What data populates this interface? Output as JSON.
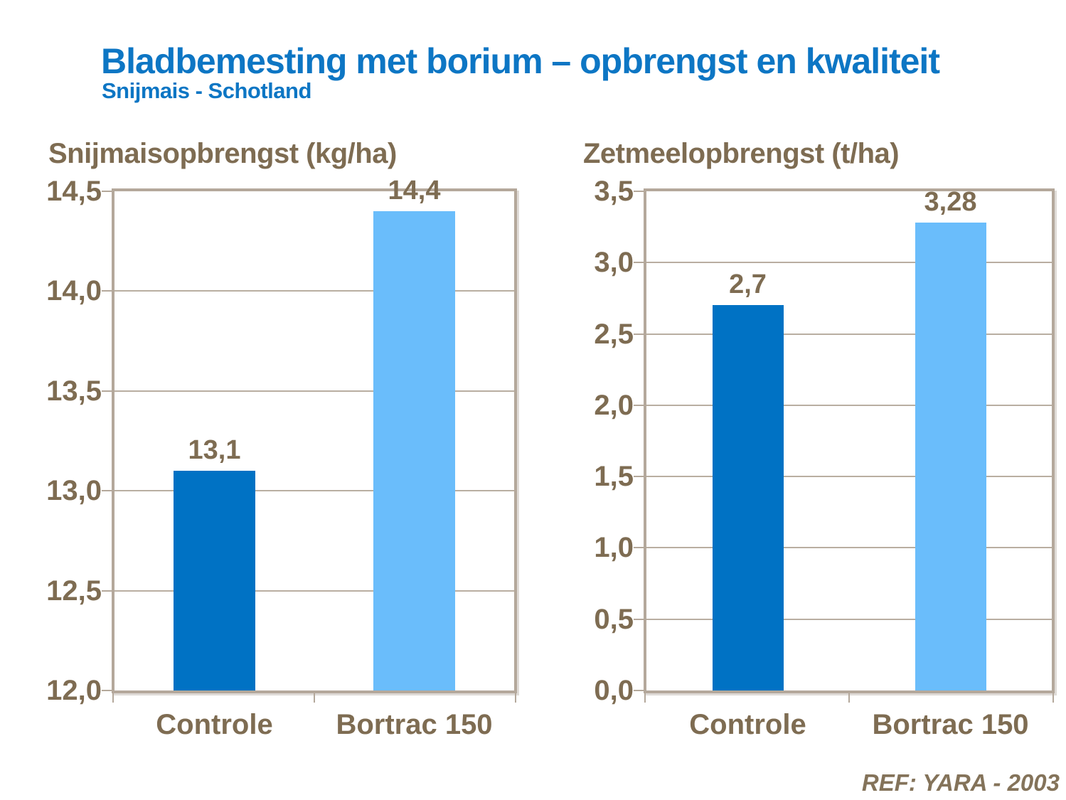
{
  "header": {
    "title": "Bladbemesting met borium – opbrengst en kwaliteit",
    "subtitle": "Snijmais - Schotland"
  },
  "footer": {
    "reference": "REF: YARA - 2003"
  },
  "colors": {
    "title_blue": "#0d76c4",
    "text_brown": "#7e6c52",
    "frame_taupe": "#b4a89b",
    "gridline": "#b9aea1",
    "bar_dark_blue": "#0072c4",
    "bar_light_blue": "#6abdfb",
    "reference_brown": "#84735a"
  },
  "chart_data": [
    {
      "type": "bar",
      "title": "Snijmaisopbrengst (kg/ha)",
      "categories": [
        "Controle",
        "Bortrac 150"
      ],
      "values": [
        13.1,
        14.4
      ],
      "value_labels": [
        "13,1",
        "14,4"
      ],
      "bar_colors": [
        "#0072c4",
        "#6abdfb"
      ],
      "ylim": [
        12.0,
        14.5
      ],
      "ytick_labels": [
        "12,0",
        "12,5",
        "13,0",
        "13,5",
        "14,0",
        "14,5"
      ],
      "grid": true,
      "legend": "none"
    },
    {
      "type": "bar",
      "title": "Zetmeelopbrengst (t/ha)",
      "categories": [
        "Controle",
        "Bortrac 150"
      ],
      "values": [
        2.7,
        3.28
      ],
      "value_labels": [
        "2,7",
        "3,28"
      ],
      "bar_colors": [
        "#0072c4",
        "#6abdfb"
      ],
      "ylim": [
        0.0,
        3.5
      ],
      "ytick_labels": [
        "0,0",
        "0,5",
        "1,0",
        "1,5",
        "2,0",
        "2,5",
        "3,0",
        "3,5"
      ],
      "grid": true,
      "legend": "none"
    }
  ]
}
